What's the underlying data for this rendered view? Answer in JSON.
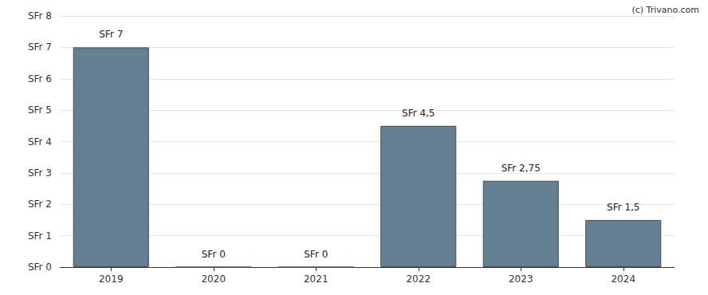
{
  "chart_data": {
    "type": "bar",
    "annotation": "(c) Trivano.com",
    "categories": [
      "2019",
      "2020",
      "2021",
      "2022",
      "2023",
      "2024"
    ],
    "values": [
      7,
      0,
      0,
      4.5,
      2.75,
      1.5
    ],
    "value_labels": [
      "SFr 7",
      "SFr 0",
      "SFr 0",
      "SFr 4,5",
      "SFr 2,75",
      "SFr 1,5"
    ],
    "data_labels": true,
    "color": "#647f91",
    "ylim": [
      0,
      8
    ],
    "yticks": [
      {
        "value": 0,
        "label": "SFr 0"
      },
      {
        "value": 1,
        "label": "SFr 1"
      },
      {
        "value": 2,
        "label": "SFr 2"
      },
      {
        "value": 3,
        "label": "SFr 3"
      },
      {
        "value": 4,
        "label": "SFr 4"
      },
      {
        "value": 5,
        "label": "SFr 5"
      },
      {
        "value": 6,
        "label": "SFr 6"
      },
      {
        "value": 7,
        "label": "SFr 7"
      },
      {
        "value": 8,
        "label": "SFr 8"
      }
    ],
    "grid": true
  }
}
